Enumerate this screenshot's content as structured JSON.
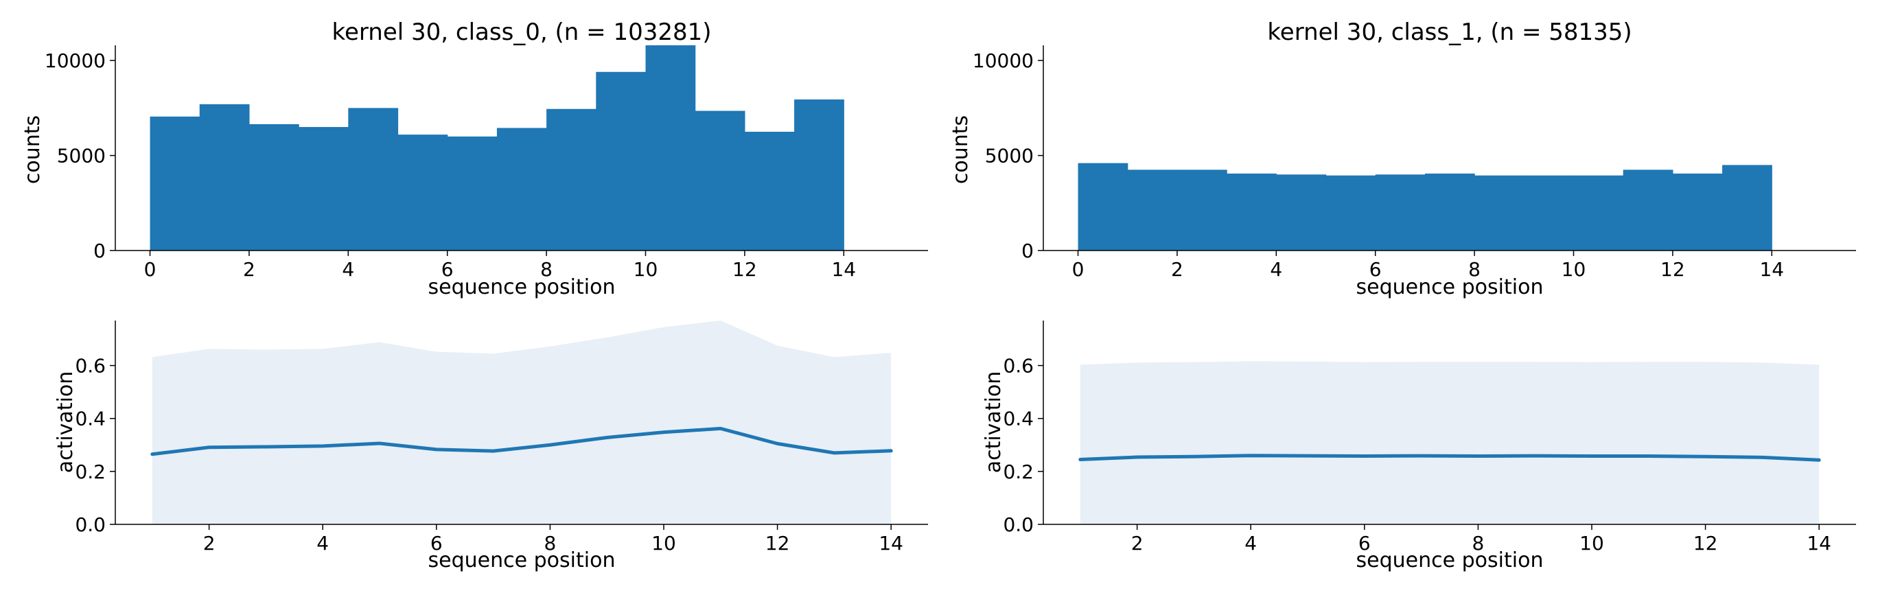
{
  "chart_data": [
    {
      "id": "hist-class0",
      "type": "bar",
      "title": "kernel 30, class_0, (n = 103281)",
      "xlabel": "sequence position",
      "ylabel": "counts",
      "bin_edges": [
        0,
        1,
        2,
        3,
        4,
        5,
        6,
        7,
        8,
        9,
        10,
        11,
        12,
        13,
        14
      ],
      "values": [
        7050,
        7700,
        6650,
        6500,
        7500,
        6100,
        6000,
        6450,
        7450,
        9400,
        10800,
        7350,
        6250,
        7950
      ],
      "color": "#1f77b4",
      "xlim": [
        -0.7,
        15.7
      ],
      "ylim": [
        0,
        10800
      ],
      "xticks": [
        0,
        2,
        4,
        6,
        8,
        10,
        12,
        14
      ],
      "yticks": [
        0,
        5000,
        10000
      ]
    },
    {
      "id": "hist-class1",
      "type": "bar",
      "title": "kernel 30, class_1, (n = 58135)",
      "xlabel": "sequence position",
      "ylabel": "counts",
      "bin_edges": [
        0,
        1,
        2,
        3,
        4,
        5,
        6,
        7,
        8,
        9,
        10,
        11,
        12,
        13,
        14
      ],
      "values": [
        4600,
        4250,
        4250,
        4050,
        4000,
        3950,
        4000,
        4050,
        3950,
        3950,
        3950,
        4250,
        4050,
        4500
      ],
      "color": "#1f77b4",
      "xlim": [
        -0.7,
        15.7
      ],
      "ylim": [
        0,
        10800
      ],
      "xticks": [
        0,
        2,
        4,
        6,
        8,
        10,
        12,
        14
      ],
      "yticks": [
        0,
        5000,
        10000
      ]
    },
    {
      "id": "line-class0",
      "type": "area",
      "xlabel": "sequence position",
      "ylabel": "activation",
      "x": [
        1,
        2,
        3,
        4,
        5,
        6,
        7,
        8,
        9,
        10,
        11,
        12,
        13,
        14
      ],
      "mean": [
        0.265,
        0.291,
        0.293,
        0.296,
        0.306,
        0.283,
        0.277,
        0.3,
        0.328,
        0.348,
        0.362,
        0.305,
        0.27,
        0.278
      ],
      "upper": [
        0.632,
        0.663,
        0.66,
        0.663,
        0.688,
        0.652,
        0.645,
        0.672,
        0.706,
        0.745,
        0.77,
        0.675,
        0.632,
        0.648
      ],
      "lower": [
        0,
        0,
        0,
        0,
        0,
        0,
        0,
        0,
        0,
        0,
        0,
        0,
        0,
        0
      ],
      "line_color": "#1f77b4",
      "band_color": "#e8eff7",
      "xlim": [
        0.35,
        14.65
      ],
      "ylim": [
        0,
        0.77
      ],
      "xticks": [
        2,
        4,
        6,
        8,
        10,
        12,
        14
      ],
      "yticks": [
        0.0,
        0.2,
        0.4,
        0.6
      ],
      "ytick_labels": [
        "0.0",
        "0.2",
        "0.4",
        "0.6"
      ]
    },
    {
      "id": "line-class1",
      "type": "area",
      "xlabel": "sequence position",
      "ylabel": "activation",
      "x": [
        1,
        2,
        3,
        4,
        5,
        6,
        7,
        8,
        9,
        10,
        11,
        12,
        13,
        14
      ],
      "mean": [
        0.245,
        0.254,
        0.256,
        0.26,
        0.259,
        0.258,
        0.259,
        0.258,
        0.259,
        0.258,
        0.258,
        0.256,
        0.253,
        0.243
      ],
      "upper": [
        0.603,
        0.611,
        0.613,
        0.616,
        0.615,
        0.613,
        0.614,
        0.614,
        0.614,
        0.613,
        0.614,
        0.614,
        0.611,
        0.603
      ],
      "lower": [
        0,
        0,
        0,
        0,
        0,
        0,
        0,
        0,
        0,
        0,
        0,
        0,
        0,
        0
      ],
      "line_color": "#1f77b4",
      "band_color": "#e8eff7",
      "xlim": [
        0.35,
        14.65
      ],
      "ylim": [
        0,
        0.77
      ],
      "xticks": [
        2,
        4,
        6,
        8,
        10,
        12,
        14
      ],
      "yticks": [
        0.0,
        0.2,
        0.4,
        0.6
      ],
      "ytick_labels": [
        "0.0",
        "0.2",
        "0.4",
        "0.6"
      ]
    }
  ]
}
